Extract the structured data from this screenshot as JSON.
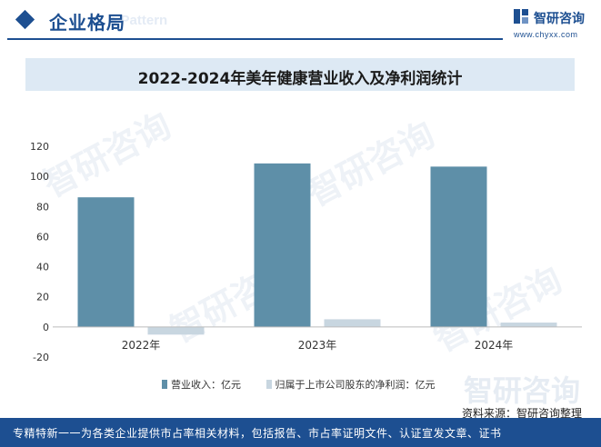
{
  "header": {
    "title": "企业格局",
    "watermark": "e Pattern",
    "logo_text": "智研咨询",
    "logo_url": "www.chyxx.com",
    "brand_color": "#1d4f91"
  },
  "background_watermark": "智研咨询",
  "chart_data": {
    "type": "bar",
    "title": "2022-2024年美年健康营业收入及净利润统计",
    "categories": [
      "2022年",
      "2023年",
      "2024年"
    ],
    "series": [
      {
        "name": "营业收入：亿元",
        "values": [
          86.1,
          108.6,
          106.5
        ],
        "color": "#5e8fa8"
      },
      {
        "name": "归属于上市公司股东的净利润：亿元",
        "values": [
          -5.1,
          5.1,
          2.9
        ],
        "color": "#c8d6e0"
      }
    ],
    "ylim": [
      -20,
      120
    ],
    "yticks": [
      -20,
      0,
      20,
      40,
      60,
      80,
      100,
      120
    ],
    "grid": false,
    "legend_position": "bottom"
  },
  "source": "资料来源：智研咨询整理",
  "footer": "专精特新一一为各类企业提供市占率相关材料，包括报告、市占率证明文件、认证宣发文章、证书"
}
